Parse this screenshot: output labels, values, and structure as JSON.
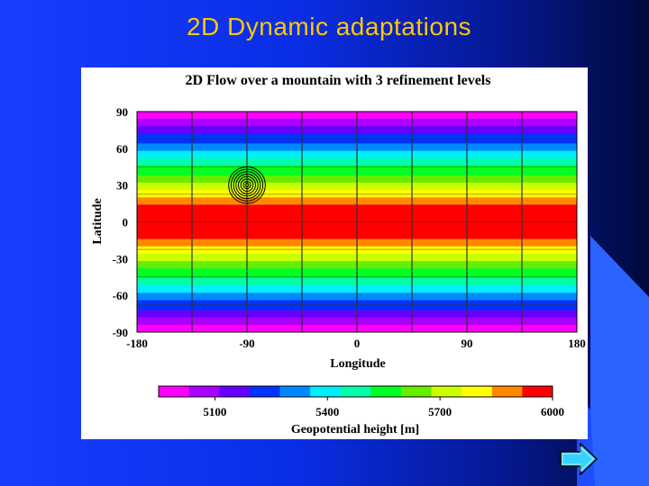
{
  "slide": {
    "title": "2D Dynamic adaptations"
  },
  "icons": {
    "next": "arrow-right-icon"
  },
  "colors": {
    "title": "#ffc800",
    "background_start": "#1a3dff",
    "background_end": "#000a3c",
    "arrow_fill": "#35d3ff"
  },
  "chart_data": {
    "type": "heatmap",
    "title": "2D Flow over a mountain with 3 refinement levels",
    "xlabel": "Longitude",
    "ylabel": "Latitude",
    "xlim": [
      -180,
      180
    ],
    "ylim": [
      -90,
      90
    ],
    "xticks": [
      -180,
      -90,
      0,
      90,
      180
    ],
    "yticks": [
      90,
      60,
      30,
      0,
      -30,
      -60,
      -90
    ],
    "grid": true,
    "grid_lines_x": [
      -135,
      -90,
      -45,
      0,
      45,
      90,
      135
    ],
    "grid_lines_y": [
      67.5,
      45,
      22.5,
      0,
      -22.5,
      -45,
      -67.5
    ],
    "colorbar": {
      "label": "Geopotential height [m]",
      "colors": [
        "#ff00ff",
        "#aa00ff",
        "#6600ff",
        "#0033ff",
        "#0088ff",
        "#00eeff",
        "#00ffaa",
        "#00ff22",
        "#66ee00",
        "#ccff00",
        "#ffff00",
        "#ff8800",
        "#ff0000"
      ],
      "min": 4950,
      "max": 6000,
      "ticks": [
        5100,
        5400,
        5700,
        6000
      ]
    },
    "bands": [
      {
        "lat": [
          84,
          90
        ],
        "color": "#ff00ff"
      },
      {
        "lat": [
          78,
          84
        ],
        "color": "#aa00ff"
      },
      {
        "lat": [
          72,
          78
        ],
        "color": "#6600ff"
      },
      {
        "lat": [
          64,
          72
        ],
        "color": "#0033ff"
      },
      {
        "lat": [
          58,
          64
        ],
        "color": "#0088ff"
      },
      {
        "lat": [
          52,
          58
        ],
        "color": "#00eeff"
      },
      {
        "lat": [
          46,
          52
        ],
        "color": "#00ffaa"
      },
      {
        "lat": [
          38,
          46
        ],
        "color": "#00ff22"
      },
      {
        "lat": [
          32,
          38
        ],
        "color": "#66ee00"
      },
      {
        "lat": [
          26,
          32
        ],
        "color": "#ccff00"
      },
      {
        "lat": [
          20,
          26
        ],
        "color": "#ffff00"
      },
      {
        "lat": [
          14,
          20
        ],
        "color": "#ff8800"
      },
      {
        "lat": [
          -14,
          14
        ],
        "color": "#ff0000"
      },
      {
        "lat": [
          -20,
          -14
        ],
        "color": "#ff8800"
      },
      {
        "lat": [
          -26,
          -20
        ],
        "color": "#ffff00"
      },
      {
        "lat": [
          -32,
          -26
        ],
        "color": "#ccff00"
      },
      {
        "lat": [
          -38,
          -32
        ],
        "color": "#66ee00"
      },
      {
        "lat": [
          -46,
          -38
        ],
        "color": "#00ff22"
      },
      {
        "lat": [
          -52,
          -46
        ],
        "color": "#00ffaa"
      },
      {
        "lat": [
          -58,
          -52
        ],
        "color": "#00eeff"
      },
      {
        "lat": [
          -64,
          -58
        ],
        "color": "#0088ff"
      },
      {
        "lat": [
          -72,
          -64
        ],
        "color": "#0033ff"
      },
      {
        "lat": [
          -78,
          -72
        ],
        "color": "#6600ff"
      },
      {
        "lat": [
          -84,
          -78
        ],
        "color": "#aa00ff"
      },
      {
        "lat": [
          -90,
          -84
        ],
        "color": "#ff00ff"
      }
    ],
    "mountain": {
      "center_lon": -90,
      "center_lat": 30,
      "radii_deg": [
        1.5,
        3,
        5,
        7,
        9,
        11,
        13,
        15
      ]
    }
  }
}
